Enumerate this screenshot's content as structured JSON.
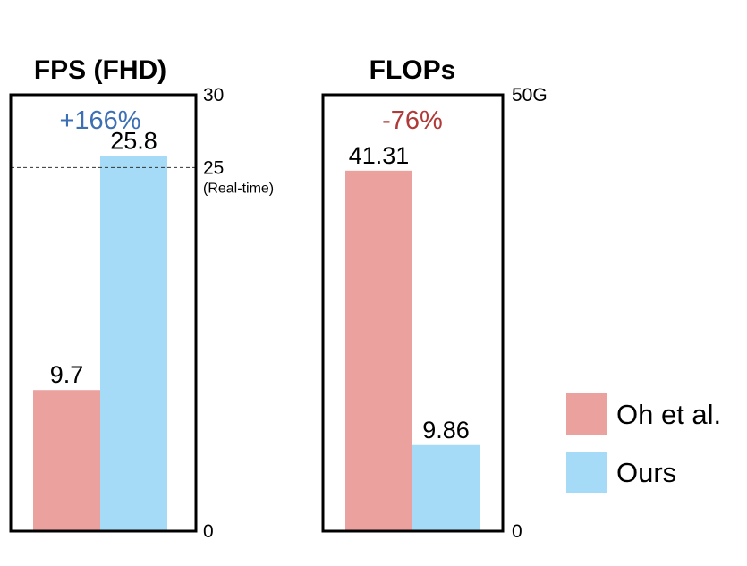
{
  "chart_data": [
    {
      "type": "bar",
      "title": "FPS (FHD)",
      "categories": [
        "Oh et al.",
        "Ours"
      ],
      "values": [
        9.7,
        25.8
      ],
      "value_labels": [
        "9.7",
        "25.8"
      ],
      "ylim": [
        0,
        30
      ],
      "y_ticks": [
        {
          "value": 0,
          "label": "0"
        },
        {
          "value": 25,
          "label": "25",
          "sublabel": "(Real-time)"
        },
        {
          "value": 30,
          "label": "30"
        }
      ],
      "reference_line": {
        "value": 25,
        "style": "dashed"
      },
      "annotation": {
        "text": "+166%",
        "color": "#3d6fb5"
      },
      "grid": false
    },
    {
      "type": "bar",
      "title": "FLOPs",
      "categories": [
        "Oh et al.",
        "Ours"
      ],
      "values": [
        41.31,
        9.86
      ],
      "value_labels": [
        "41.31",
        "9.86"
      ],
      "ylim": [
        0,
        50
      ],
      "y_ticks": [
        {
          "value": 0,
          "label": "0"
        },
        {
          "value": 50,
          "label": "50G"
        }
      ],
      "annotation": {
        "text": "-76%",
        "color": "#b03a3a"
      },
      "grid": false
    }
  ],
  "legend": {
    "placement": "right",
    "items": [
      {
        "label": "Oh et al.",
        "color": "#eba19e"
      },
      {
        "label": "Ours",
        "color": "#a6dbf8"
      }
    ]
  }
}
